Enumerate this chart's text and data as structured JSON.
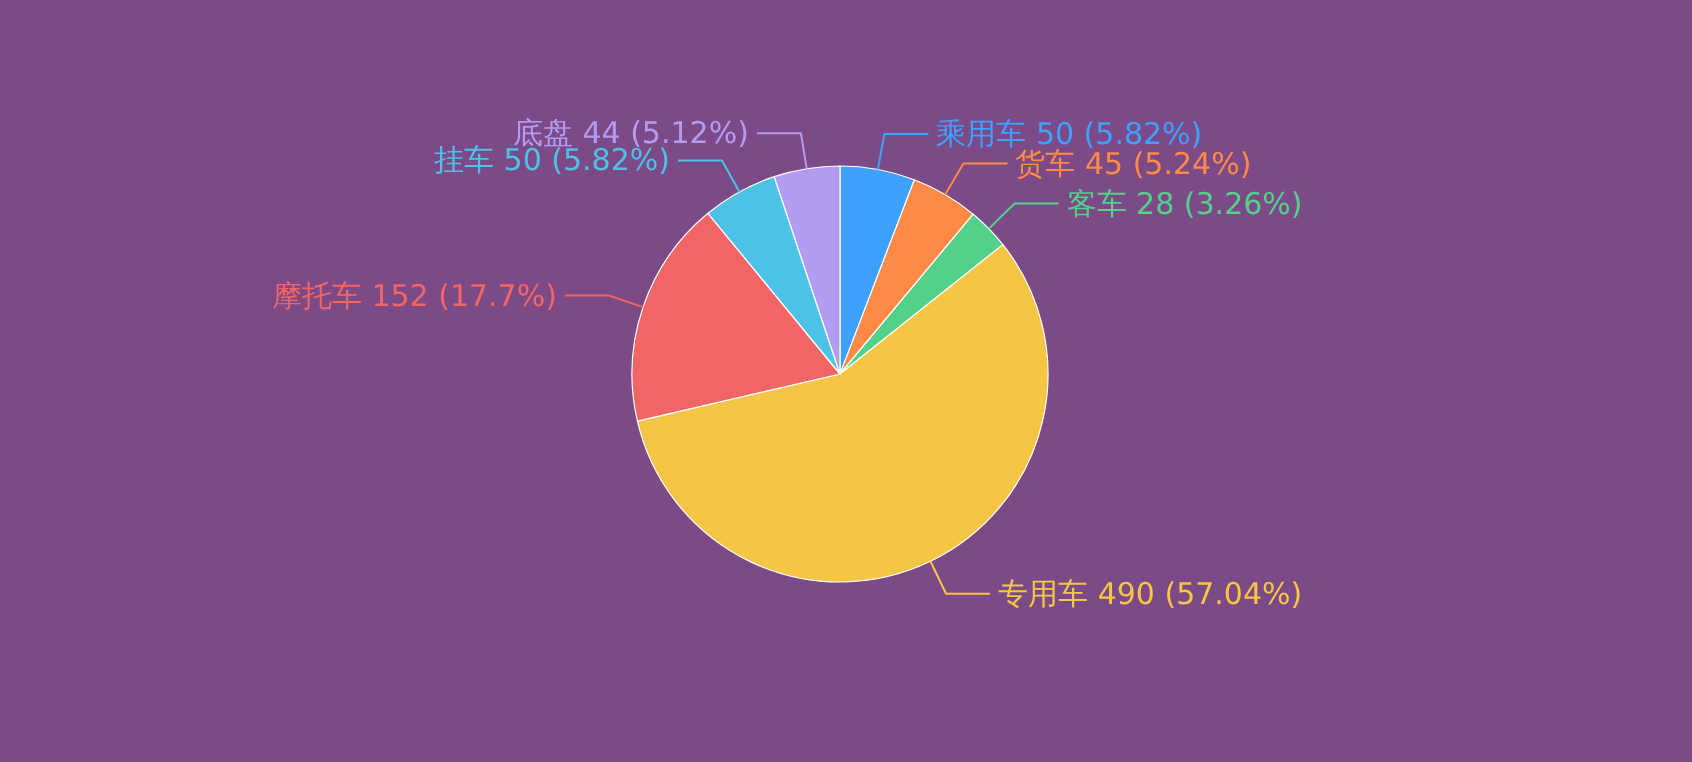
{
  "chart_data": {
    "type": "pie",
    "categories": [
      "乘用车",
      "货车",
      "客车",
      "专用车",
      "摩托车",
      "挂车",
      "底盘"
    ],
    "values": [
      50,
      45,
      28,
      490,
      152,
      50,
      44
    ],
    "value_labels": [
      "50  (5.82%)",
      "45  (5.24%)",
      "28  (3.26%)",
      "490  (57.04%)",
      "152  (17.7%)",
      "50  (5.82%)",
      "44  (5.12%)"
    ],
    "colors": [
      "#3ea0ff",
      "#ff8a45",
      "#53d08a",
      "#f5c543",
      "#f26565",
      "#4cc3e6",
      "#b39cf0"
    ]
  }
}
